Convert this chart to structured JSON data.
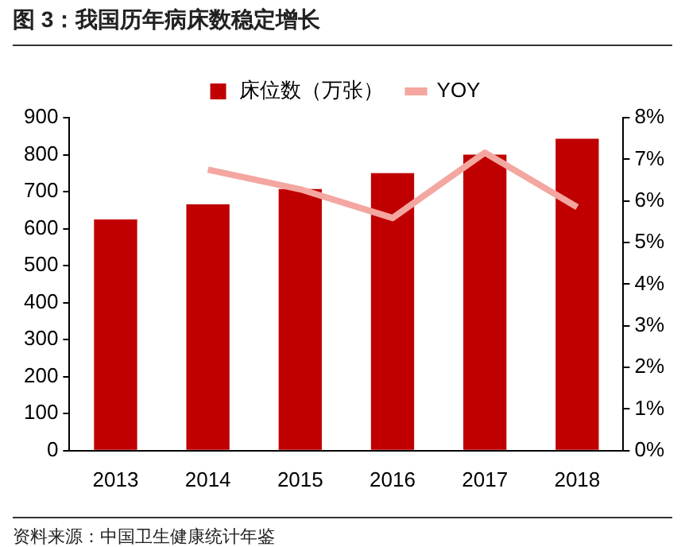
{
  "chart_data": {
    "type": "bar",
    "title": "图 3：我国历年病床数稳定增长",
    "categories": [
      "2013",
      "2014",
      "2015",
      "2016",
      "2017",
      "2018"
    ],
    "series": [
      {
        "name": "床位数（万张）",
        "color": "#c00000",
        "values": [
          625,
          666,
          707,
          750,
          800,
          843
        ]
      },
      {
        "name": "YOY",
        "type": "line",
        "axis": "y2",
        "color": "#f4a6a0",
        "values": [
          null,
          6.75,
          6.28,
          5.59,
          7.16,
          5.85
        ]
      }
    ],
    "ylim": [
      0,
      900
    ],
    "yticks": [
      0,
      100,
      200,
      300,
      400,
      500,
      600,
      700,
      800,
      900
    ],
    "y2lim": [
      0,
      8
    ],
    "y2ticks": [
      {
        "value": 0,
        "label": "0%"
      },
      {
        "value": 1,
        "label": "1%"
      },
      {
        "value": 2,
        "label": "2%"
      },
      {
        "value": 3,
        "label": "3%"
      },
      {
        "value": 4,
        "label": "4%"
      },
      {
        "value": 5,
        "label": "5%"
      },
      {
        "value": 6,
        "label": "6%"
      },
      {
        "value": 7,
        "label": "7%"
      },
      {
        "value": 8,
        "label": "8%"
      }
    ],
    "grid": false,
    "legend": "top",
    "marker": "none",
    "line_style": "solid",
    "annotations": [
      "资料来源：中国卫生健康统计年鉴"
    ]
  }
}
